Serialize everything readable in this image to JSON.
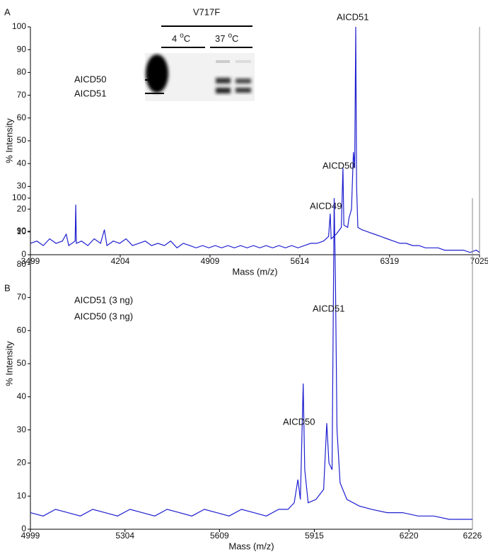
{
  "chart_data": [
    {
      "type": "line",
      "panel_label": "A",
      "xlabel": "Mass (m/z)",
      "ylabel": "% Intensity",
      "color": "#1f1fd0",
      "x": [
        3499,
        3550,
        3600,
        3650,
        3700,
        3750,
        3780,
        3800,
        3850,
        3855,
        3860,
        3900,
        3950,
        4000,
        4050,
        4080,
        4100,
        4150,
        4200,
        4250,
        4300,
        4350,
        4400,
        4450,
        4500,
        4550,
        4600,
        4650,
        4700,
        4750,
        4800,
        4850,
        4900,
        4950,
        5000,
        5050,
        5100,
        5150,
        5200,
        5250,
        5300,
        5350,
        5400,
        5450,
        5500,
        5550,
        5600,
        5650,
        5700,
        5750,
        5800,
        5840,
        5853,
        5860,
        5900,
        5940,
        5953,
        5960,
        5990,
        6000,
        6020,
        6035,
        6045,
        6053,
        6060,
        6070,
        6100,
        6150,
        6200,
        6250,
        6300,
        6350,
        6400,
        6450,
        6500,
        6550,
        6600,
        6650,
        6700,
        6750,
        6800,
        6850,
        6900,
        6950,
        7000,
        7025
      ],
      "values": [
        5,
        6,
        4,
        7,
        5,
        6,
        9,
        4,
        6,
        22,
        5,
        6,
        4,
        7,
        5,
        11,
        4,
        6,
        5,
        7,
        4,
        5,
        6,
        4,
        5,
        4,
        6,
        3,
        5,
        4,
        3,
        4,
        3,
        4,
        3,
        4,
        3,
        4,
        3,
        4,
        3,
        4,
        3,
        4,
        3,
        4,
        3,
        4,
        5,
        5,
        6,
        8,
        18,
        7,
        9,
        12,
        38,
        13,
        12,
        16,
        20,
        45,
        38,
        100,
        30,
        12,
        11,
        10,
        9,
        8,
        7,
        6,
        5,
        5,
        4,
        4,
        3,
        3,
        3,
        2,
        2,
        2,
        2,
        1,
        2,
        1
      ],
      "xlim": [
        3499,
        7025
      ],
      "ylim": [
        0,
        100
      ],
      "xticks": [
        3499,
        4204,
        4909,
        5614,
        6319,
        7025
      ],
      "yticks": [
        0,
        10,
        20,
        30,
        40,
        50,
        60,
        70,
        80,
        90,
        100
      ],
      "annotations": [
        {
          "text": "AICD51"
        },
        {
          "text": "AICD50"
        },
        {
          "text": "AICD49"
        }
      ],
      "inset": {
        "title": "V717F",
        "lanes": [
          {
            "temp": "4",
            "deg": "o",
            "unit": "C"
          },
          {
            "temp": "37",
            "deg": "o",
            "unit": "C"
          }
        ],
        "bands": [
          "AICD50",
          "AICD51"
        ]
      }
    },
    {
      "type": "line",
      "panel_label": "B",
      "xlabel": "Mass (m/z)",
      "ylabel": "% Intensity",
      "color": "#1f1fd0",
      "x": [
        4999,
        5040,
        5080,
        5120,
        5160,
        5200,
        5240,
        5280,
        5320,
        5360,
        5400,
        5440,
        5480,
        5520,
        5560,
        5600,
        5640,
        5680,
        5720,
        5760,
        5800,
        5830,
        5850,
        5862,
        5870,
        5879,
        5884,
        5895,
        5920,
        5945,
        5955,
        5962,
        5972,
        5979,
        5983,
        5988,
        5998,
        6020,
        6060,
        6100,
        6150,
        6200,
        6250,
        6300,
        6350,
        6400,
        6425
      ],
      "values": [
        5,
        4,
        6,
        5,
        4,
        6,
        5,
        4,
        6,
        5,
        4,
        6,
        5,
        4,
        6,
        5,
        4,
        6,
        5,
        4,
        6,
        6,
        8,
        15,
        9,
        44,
        18,
        8,
        9,
        12,
        32,
        20,
        18,
        100,
        75,
        30,
        14,
        9,
        7,
        6,
        5,
        5,
        4,
        4,
        3,
        3,
        3
      ],
      "xlim": [
        4999,
        6425
      ],
      "ylim": [
        0,
        100
      ],
      "xticks": [
        4999,
        5304,
        5609,
        5915,
        6220
      ],
      "axis_end_label": "6226",
      "yticks": [
        0,
        10,
        20,
        30,
        40,
        50,
        60,
        70,
        80,
        90,
        100
      ],
      "notes": [
        "AICD51 (3 ng)",
        "AICD50 (3 ng)"
      ],
      "annotations": [
        {
          "text": "AICD51"
        },
        {
          "text": "AICD50"
        }
      ]
    }
  ]
}
